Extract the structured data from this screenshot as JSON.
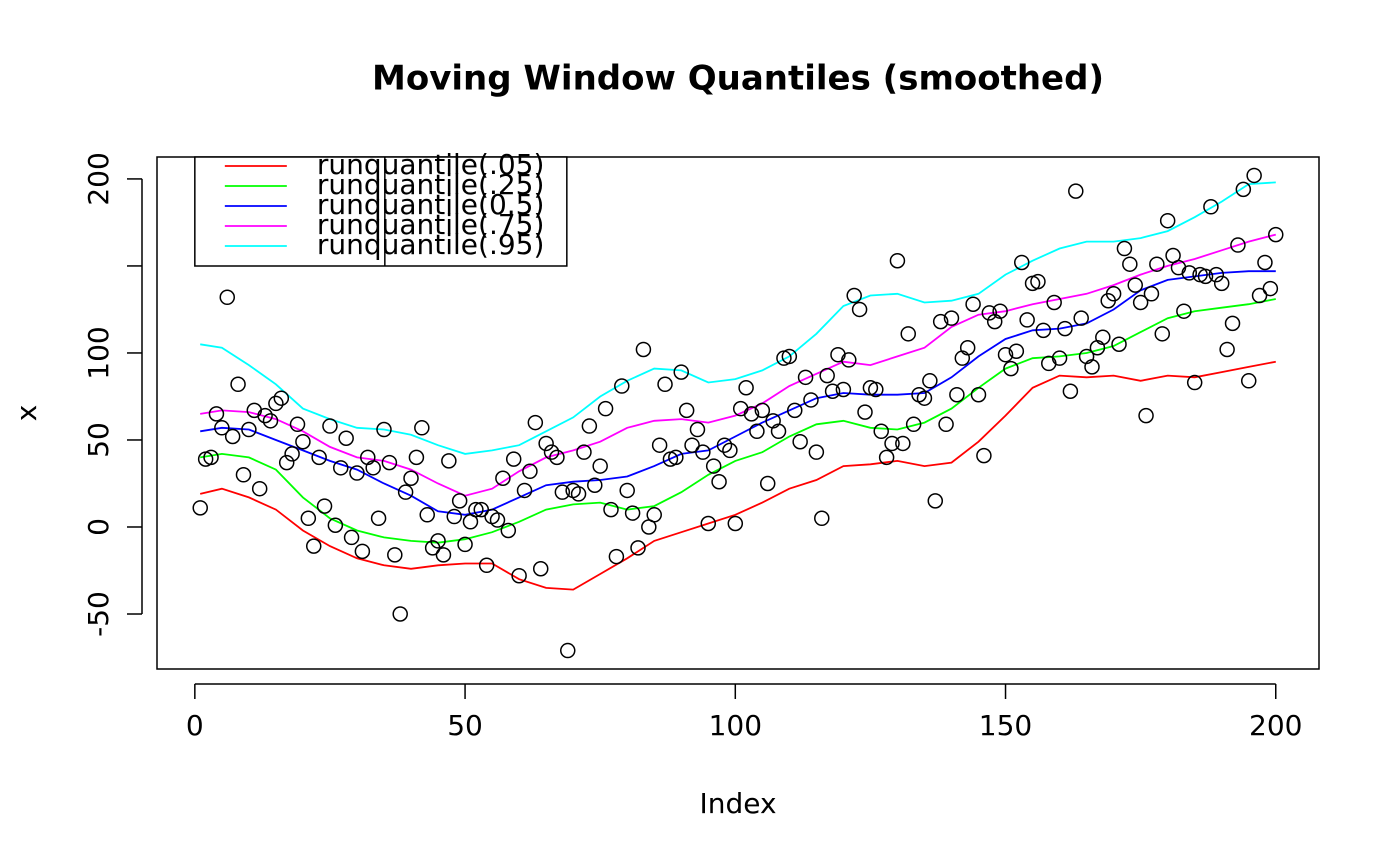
{
  "chart_data": {
    "type": "line",
    "title": "Moving Window Quantiles (smoothed)",
    "x_label": "Index",
    "y_label": "x",
    "xlim": [
      -7,
      208
    ],
    "ylim": [
      -81.6,
      212.6
    ],
    "xticks": [
      0,
      50,
      100,
      150,
      200
    ],
    "yticks": [
      -50,
      0,
      50,
      100,
      {
        "value": 150,
        "label": null
      },
      200
    ],
    "legend": "topleft",
    "points": {
      "color": "#000000",
      "x": [
        1,
        2,
        3,
        4,
        5,
        6,
        7,
        8,
        9,
        10,
        11,
        12,
        13,
        14,
        15,
        16,
        17,
        18,
        19,
        20,
        21,
        22,
        23,
        24,
        25,
        26,
        27,
        28,
        29,
        30,
        31,
        32,
        33,
        34,
        35,
        36,
        37,
        38,
        39,
        40,
        41,
        42,
        43,
        44,
        45,
        46,
        47,
        48,
        49,
        50,
        51,
        52,
        53,
        54,
        55,
        56,
        57,
        58,
        59,
        60,
        61,
        62,
        63,
        64,
        65,
        66,
        67,
        68,
        69,
        70,
        71,
        72,
        73,
        74,
        75,
        76,
        77,
        78,
        79,
        80,
        81,
        82,
        83,
        84,
        85,
        86,
        87,
        88,
        89,
        90,
        91,
        92,
        93,
        94,
        95,
        96,
        97,
        98,
        99,
        100,
        101,
        102,
        103,
        104,
        105,
        106,
        107,
        108,
        109,
        110,
        111,
        112,
        113,
        114,
        115,
        116,
        117,
        118,
        119,
        120,
        121,
        122,
        123,
        124,
        125,
        126,
        127,
        128,
        129,
        130,
        131,
        132,
        133,
        134,
        135,
        136,
        137,
        138,
        139,
        140,
        141,
        142,
        143,
        144,
        145,
        146,
        147,
        148,
        149,
        150,
        151,
        152,
        153,
        154,
        155,
        156,
        157,
        158,
        159,
        160,
        161,
        162,
        163,
        164,
        165,
        166,
        167,
        168,
        169,
        170,
        171,
        172,
        173,
        174,
        175,
        176,
        177,
        178,
        179,
        180,
        181,
        182,
        183,
        184,
        185,
        186,
        187,
        188,
        189,
        190,
        191,
        192,
        193,
        194,
        195,
        196,
        197,
        198,
        199,
        200
      ],
      "values": [
        11,
        39,
        40,
        65,
        57,
        132,
        52,
        82,
        30,
        56,
        67,
        22,
        64,
        61,
        71,
        74,
        37,
        42,
        59,
        49,
        5,
        -11,
        40,
        12,
        58,
        1,
        34,
        51,
        -6,
        31,
        -14,
        40,
        34,
        5,
        56,
        37,
        -16,
        -50,
        20,
        28,
        40,
        57,
        7,
        -12,
        -8,
        -16,
        38,
        6,
        15,
        -10,
        3,
        10,
        10,
        -22,
        6,
        4,
        28,
        -2,
        39,
        -28,
        21,
        32,
        60,
        -24,
        48,
        43,
        40,
        20,
        -71,
        21,
        19,
        43,
        58,
        24,
        35,
        68,
        10,
        -17,
        81,
        21,
        8,
        -12,
        102,
        0,
        7,
        47,
        82,
        39,
        40,
        89,
        67,
        47,
        56,
        43,
        2,
        35,
        26,
        47,
        44,
        2,
        68,
        80,
        65,
        55,
        67,
        25,
        61,
        55,
        97,
        98,
        67,
        49,
        86,
        73,
        43,
        5,
        87,
        78,
        99,
        79,
        96,
        133,
        125,
        66,
        80,
        79,
        55,
        40,
        48,
        153,
        48,
        111,
        59,
        76,
        74,
        84,
        15,
        118,
        59,
        120,
        76,
        97,
        103,
        128,
        76,
        41,
        123,
        118,
        124,
        99,
        91,
        101,
        152,
        119,
        140,
        141,
        113,
        94,
        129,
        97,
        114,
        78,
        193,
        120,
        98,
        92,
        103,
        109,
        130,
        134,
        105,
        160,
        151,
        139,
        129,
        64,
        134,
        151,
        111,
        176,
        156,
        149,
        124,
        146,
        83,
        145,
        144,
        184,
        145,
        140,
        102,
        117,
        162,
        194,
        84,
        202,
        133,
        152,
        137,
        168
      ]
    },
    "line_x": [
      1,
      5,
      10,
      15,
      20,
      25,
      30,
      35,
      40,
      45,
      50,
      55,
      60,
      65,
      70,
      75,
      80,
      85,
      90,
      95,
      100,
      105,
      110,
      115,
      120,
      125,
      130,
      135,
      140,
      145,
      150,
      155,
      160,
      165,
      170,
      175,
      180,
      185,
      190,
      195,
      200
    ],
    "series": [
      {
        "name": "runquantile(.05)",
        "color": "#ff0000",
        "values": [
          19,
          22,
          17,
          10,
          -2,
          -11,
          -18,
          -22,
          -24,
          -22,
          -21,
          -21,
          -30,
          -35,
          -36,
          -27,
          -18,
          -8,
          -3,
          2,
          7,
          14,
          22,
          27,
          35,
          36,
          38,
          35,
          37,
          49,
          64,
          80,
          87,
          86,
          87,
          84,
          87,
          86,
          89,
          92,
          95
        ]
      },
      {
        "name": "runquantile(.25)",
        "color": "#00ff00",
        "values": [
          40,
          42,
          40,
          33,
          17,
          5,
          -2,
          -6,
          -8,
          -9,
          -7,
          -3,
          3,
          10,
          13,
          14,
          10,
          12,
          20,
          30,
          38,
          43,
          52,
          59,
          61,
          57,
          56,
          60,
          68,
          80,
          91,
          97,
          98,
          100,
          104,
          112,
          120,
          124,
          126,
          128,
          131
        ]
      },
      {
        "name": "runquantile(0.5)",
        "color": "#0000ff",
        "values": [
          55,
          57,
          56,
          50,
          44,
          38,
          33,
          25,
          18,
          9,
          7,
          10,
          17,
          24,
          26,
          27,
          29,
          35,
          42,
          44,
          52,
          60,
          67,
          74,
          77,
          76,
          76,
          77,
          86,
          98,
          108,
          113,
          114,
          117,
          125,
          136,
          142,
          144,
          146,
          147,
          147
        ]
      },
      {
        "name": "runquantile(.75)",
        "color": "#ff00ff",
        "values": [
          65,
          67,
          66,
          62,
          55,
          46,
          40,
          38,
          33,
          25,
          18,
          22,
          32,
          40,
          44,
          49,
          57,
          61,
          62,
          60,
          64,
          71,
          81,
          88,
          95,
          93,
          98,
          103,
          115,
          122,
          124,
          128,
          131,
          134,
          139,
          145,
          150,
          154,
          159,
          164,
          168
        ]
      },
      {
        "name": "runquantile(.95)",
        "color": "#00ffff",
        "values": [
          105,
          103,
          93,
          82,
          68,
          62,
          57,
          56,
          53,
          47,
          42,
          44,
          47,
          55,
          63,
          75,
          84,
          91,
          90,
          83,
          85,
          90,
          98,
          111,
          127,
          133,
          134,
          129,
          130,
          134,
          145,
          153,
          160,
          164,
          164,
          166,
          170,
          178,
          187,
          197,
          198
        ]
      }
    ]
  }
}
